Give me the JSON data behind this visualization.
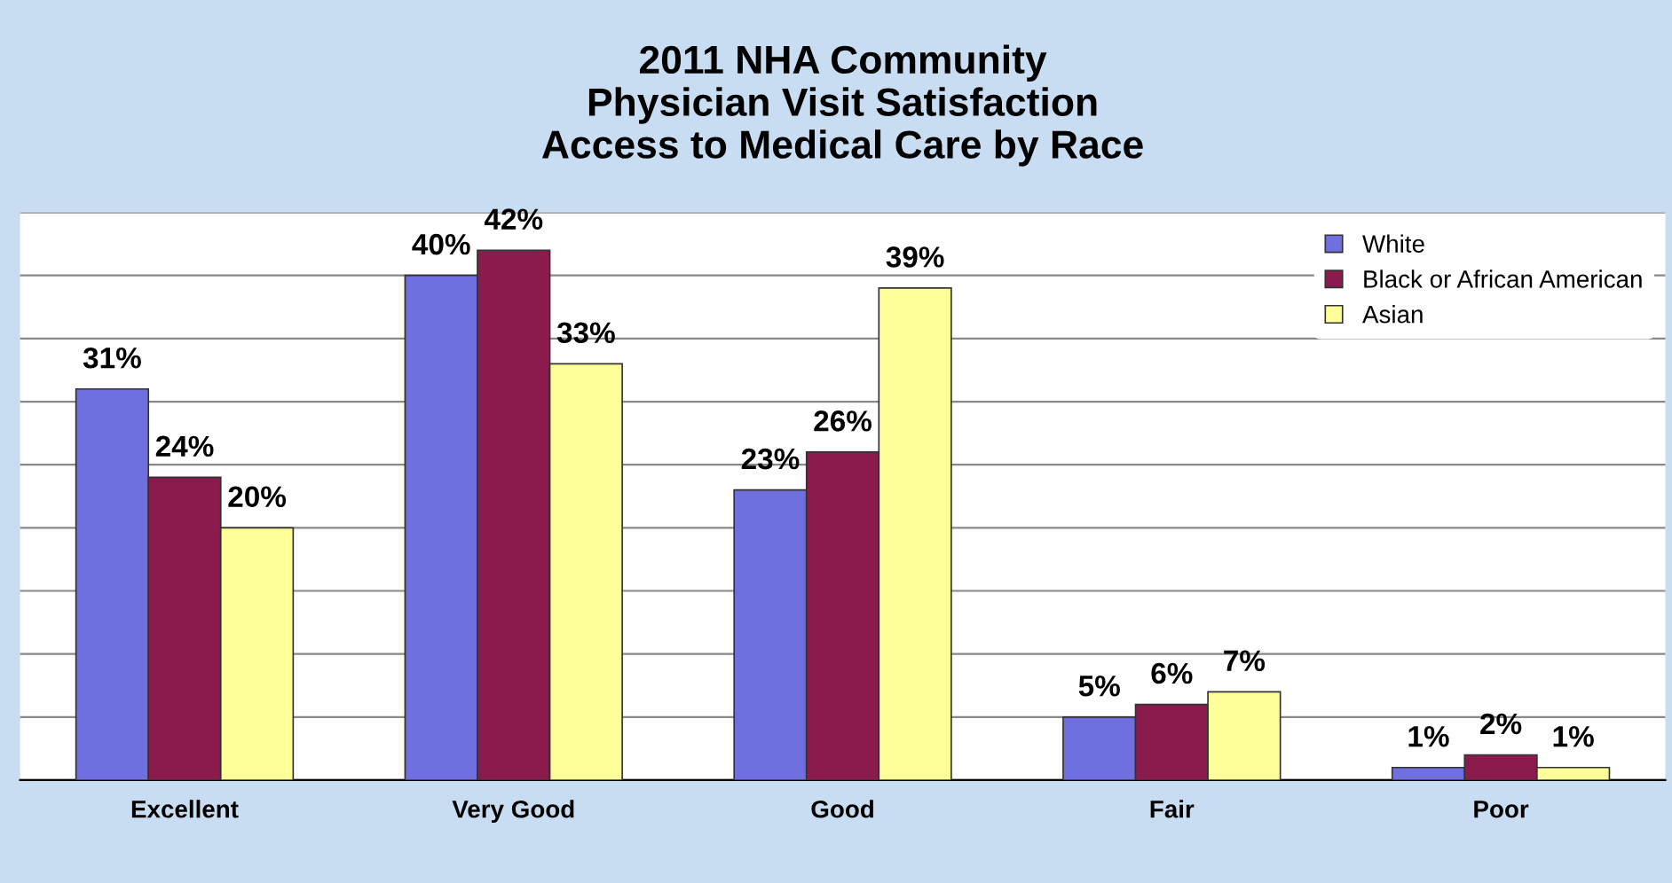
{
  "chart_data": {
    "type": "bar",
    "title": "2011 NHA Community\nPhysician Visit Satisfaction\nAccess to Medical Care by Race",
    "categories": [
      "Excellent",
      "Very Good",
      "Good",
      "Fair",
      "Poor"
    ],
    "series": [
      {
        "name": "White",
        "color": "#6f6fe0",
        "values": [
          31,
          40,
          23,
          5,
          1
        ],
        "value_labels": [
          "31%",
          "40%",
          "23%",
          "5%",
          "1%"
        ]
      },
      {
        "name": "Black or African American",
        "color": "#8b1a4d",
        "values": [
          24,
          42,
          26,
          6,
          2
        ],
        "value_labels": [
          "24%",
          "42%",
          "26%",
          "6%",
          "2%"
        ]
      },
      {
        "name": "Asian",
        "color": "#ffff99",
        "values": [
          20,
          33,
          39,
          7,
          1
        ],
        "value_labels": [
          "20%",
          "33%",
          "39%",
          "7%",
          "1%"
        ]
      }
    ],
    "ylim": [
      0,
      45
    ],
    "yticks": [
      {
        "value": 0,
        "label": null
      },
      {
        "value": 5,
        "label": null
      },
      {
        "value": 10,
        "label": null
      },
      {
        "value": 15,
        "label": null
      },
      {
        "value": 20,
        "label": null
      },
      {
        "value": 25,
        "label": null
      },
      {
        "value": 30,
        "label": null
      },
      {
        "value": 35,
        "label": null
      },
      {
        "value": 40,
        "label": null
      },
      {
        "value": 45,
        "label": null
      }
    ],
    "tick_labels": "x",
    "grid": "y",
    "legend": "top right"
  }
}
